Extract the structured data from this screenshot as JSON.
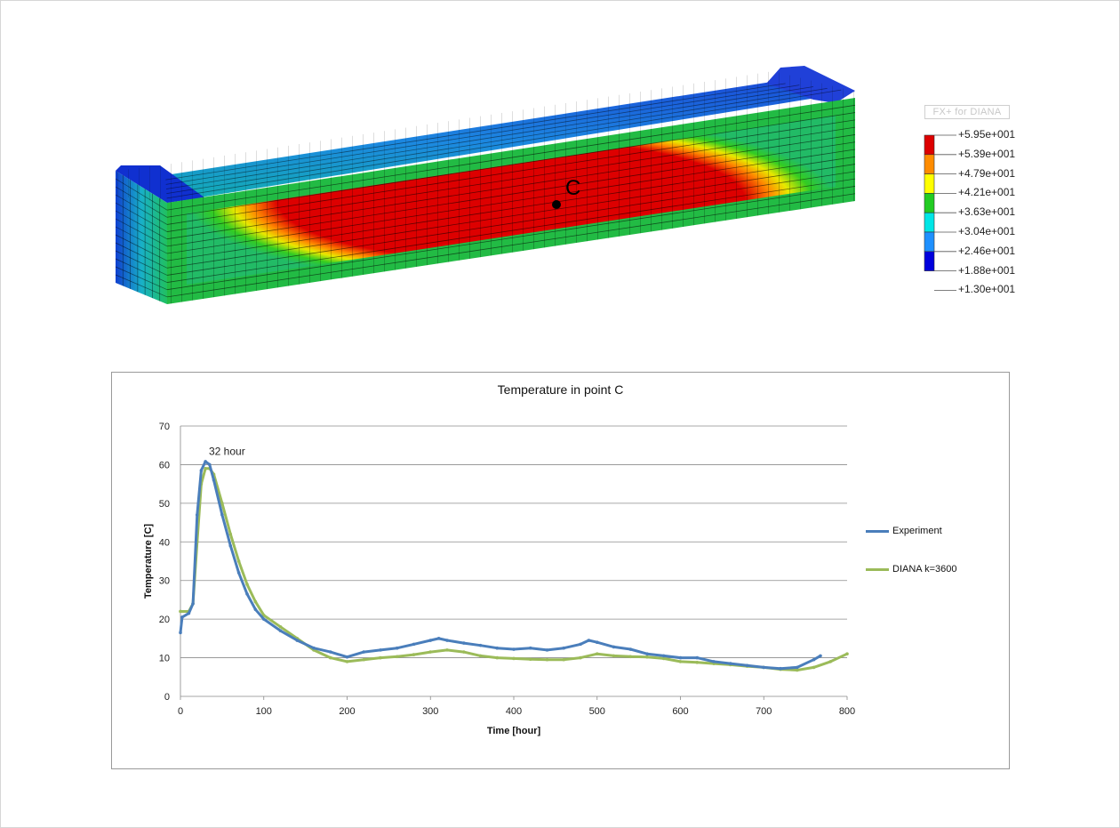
{
  "model": {
    "point_label": "C",
    "legend_title": "FX+ for DIANA",
    "legend_values": [
      "+5.95e+001",
      "+5.39e+001",
      "+4.79e+001",
      "+4.21e+001",
      "+3.63e+001",
      "+3.04e+001",
      "+2.46e+001",
      "+1.88e+001",
      "+1.30e+001"
    ],
    "legend_colors": [
      "#dd0000",
      "#ff8c00",
      "#ffff00",
      "#22cc22",
      "#00e6e6",
      "#1e90ff",
      "#0000dd"
    ]
  },
  "chart_data": {
    "type": "line",
    "title": "Temperature in point C",
    "xlabel": "Time [hour]",
    "ylabel": "Temperature [C]",
    "xlim": [
      0,
      800
    ],
    "ylim": [
      0,
      70
    ],
    "x_ticks": [
      0,
      100,
      200,
      300,
      400,
      500,
      600,
      700,
      800
    ],
    "y_ticks": [
      0,
      10,
      20,
      30,
      40,
      50,
      60,
      70
    ],
    "grid": "horizontal",
    "legend_position": "right",
    "annotations": [
      {
        "text": "32 hour",
        "x": 32,
        "y": 63
      }
    ],
    "series": [
      {
        "name": "Experiment",
        "color": "#4a7ebb",
        "x": [
          0,
          2,
          10,
          15,
          20,
          25,
          30,
          35,
          40,
          50,
          60,
          70,
          80,
          90,
          100,
          120,
          140,
          160,
          180,
          200,
          220,
          240,
          260,
          280,
          300,
          310,
          320,
          340,
          360,
          380,
          400,
          420,
          440,
          460,
          480,
          490,
          500,
          520,
          540,
          560,
          580,
          600,
          620,
          640,
          660,
          680,
          700,
          720,
          740,
          760,
          768
        ],
        "y": [
          16.5,
          20.5,
          21.5,
          24,
          47,
          58.5,
          60.8,
          60,
          56,
          47,
          39,
          32,
          26.5,
          22.5,
          20,
          17,
          14.5,
          12.5,
          11.5,
          10.2,
          11.5,
          12,
          12.5,
          13.5,
          14.5,
          15,
          14.5,
          13.8,
          13.2,
          12.5,
          12.2,
          12.5,
          12,
          12.5,
          13.5,
          14.5,
          14,
          12.8,
          12.2,
          11,
          10.5,
          10,
          10,
          9,
          8.5,
          8,
          7.5,
          7.2,
          7.5,
          9.5,
          10.5
        ]
      },
      {
        "name": "DIANA k=3600",
        "color": "#9bbb59",
        "x": [
          0,
          10,
          15,
          20,
          25,
          30,
          35,
          40,
          50,
          60,
          70,
          80,
          90,
          100,
          120,
          140,
          160,
          180,
          200,
          220,
          240,
          260,
          280,
          300,
          320,
          340,
          360,
          380,
          400,
          420,
          440,
          460,
          480,
          500,
          520,
          540,
          560,
          580,
          600,
          620,
          640,
          660,
          680,
          700,
          720,
          740,
          760,
          780,
          800
        ],
        "y": [
          22,
          22,
          24,
          40,
          55,
          59,
          59,
          57.5,
          50,
          42,
          35,
          29,
          24.5,
          21,
          18,
          15,
          12,
          10,
          9,
          9.5,
          10,
          10.3,
          10.8,
          11.5,
          12,
          11.5,
          10.5,
          10,
          9.8,
          9.6,
          9.5,
          9.5,
          10,
          11,
          10.5,
          10.3,
          10.2,
          9.8,
          9,
          8.8,
          8.5,
          8.2,
          7.8,
          7.5,
          7,
          6.8,
          7.5,
          9,
          11
        ]
      }
    ]
  }
}
